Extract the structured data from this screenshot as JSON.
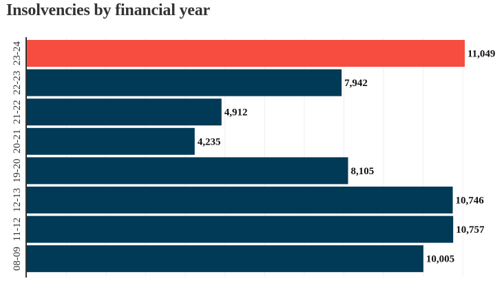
{
  "chart_data": {
    "type": "bar",
    "orientation": "horizontal",
    "title": "Insolvencies by financial year",
    "xlabel": "",
    "ylabel": "",
    "categories": [
      "23-24",
      "22-23",
      "21-22",
      "20-21",
      "19-20",
      "12-13",
      "11-12",
      "08-09"
    ],
    "values": [
      11049,
      7942,
      4912,
      4235,
      8105,
      10746,
      10757,
      10005
    ],
    "value_labels": [
      "11,049",
      "7,942",
      "4,912",
      "4,235",
      "8,105",
      "10,746",
      "10,757",
      "10,005"
    ],
    "xlim": [
      0,
      11049
    ],
    "grid": true,
    "highlight_category": "23-24",
    "colors": {
      "bar": "#003a56",
      "highlight": "#f64d40",
      "axis": "#333333",
      "grid": "#eeeeee"
    }
  }
}
